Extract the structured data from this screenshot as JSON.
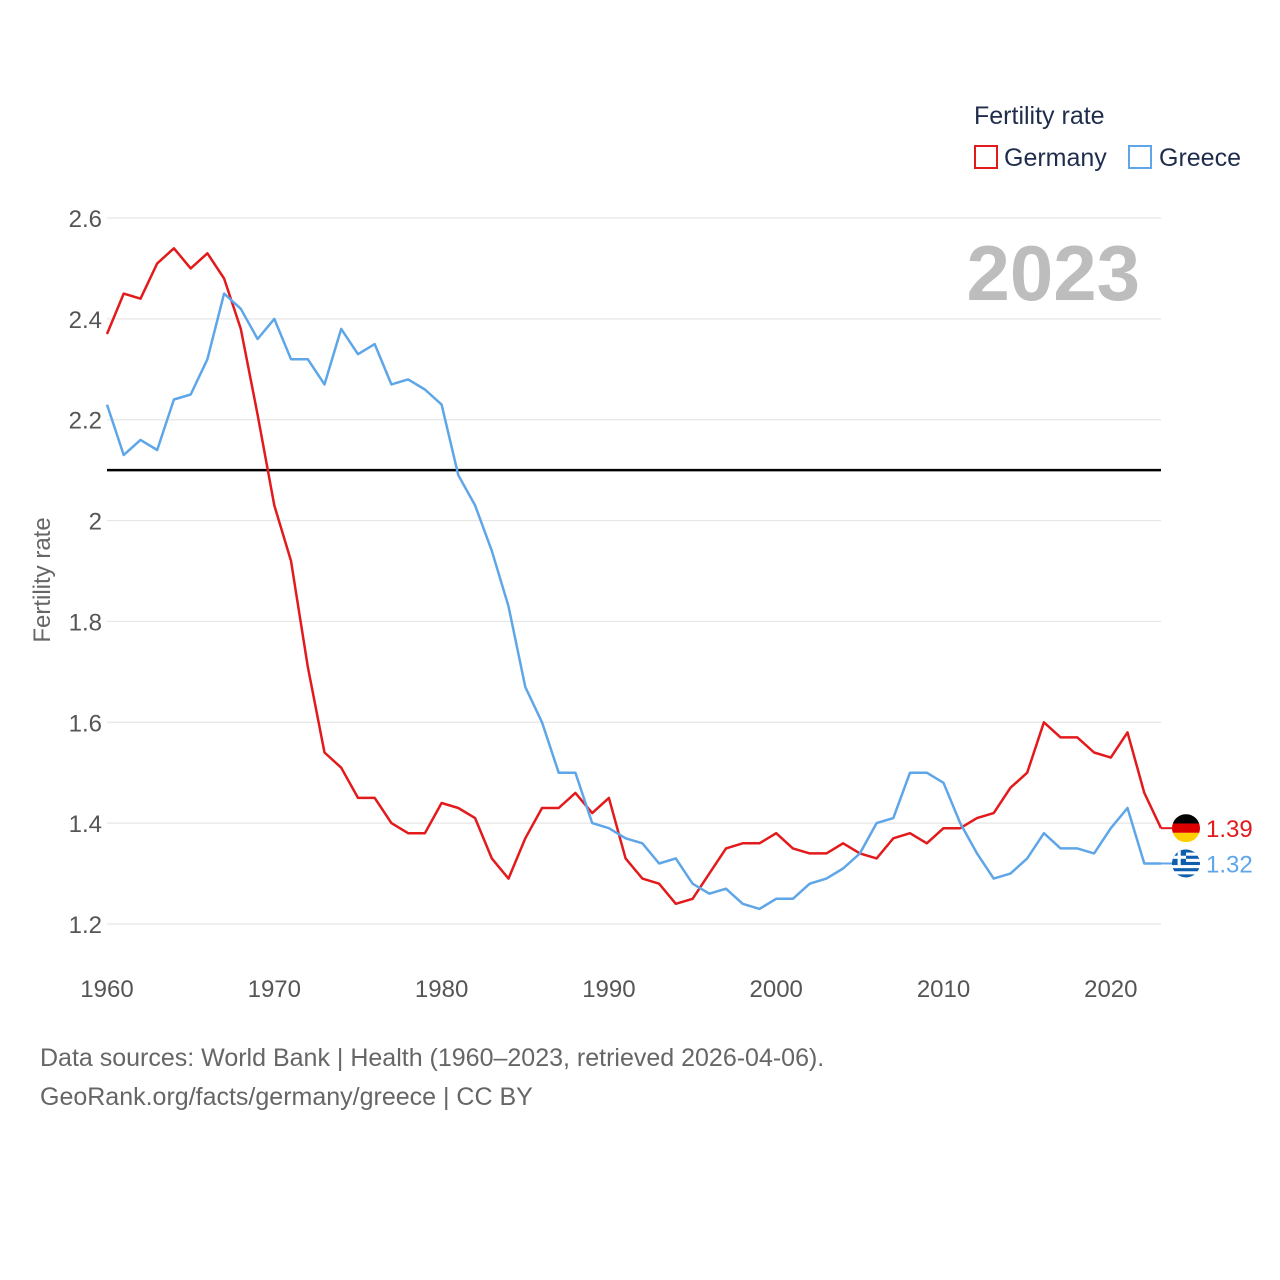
{
  "chart_data": {
    "type": "line",
    "legend_title": "Fertility rate",
    "legend_position": "top-right",
    "ylabel": "Fertility rate",
    "xlabel": "",
    "year_label": "2023",
    "xlim": [
      1960,
      2023
    ],
    "ylim": [
      1.2,
      2.6
    ],
    "x_ticks": [
      1960,
      1970,
      1980,
      1990,
      2000,
      2010,
      2020
    ],
    "y_ticks": [
      1.2,
      1.4,
      1.6,
      1.8,
      2,
      2.2,
      2.4,
      2.6
    ],
    "reference_line": 2.1,
    "grid": true,
    "x": [
      1960,
      1961,
      1962,
      1963,
      1964,
      1965,
      1966,
      1967,
      1968,
      1969,
      1970,
      1971,
      1972,
      1973,
      1974,
      1975,
      1976,
      1977,
      1978,
      1979,
      1980,
      1981,
      1982,
      1983,
      1984,
      1985,
      1986,
      1987,
      1988,
      1989,
      1990,
      1991,
      1992,
      1993,
      1994,
      1995,
      1996,
      1997,
      1998,
      1999,
      2000,
      2001,
      2002,
      2003,
      2004,
      2005,
      2006,
      2007,
      2008,
      2009,
      2010,
      2011,
      2012,
      2013,
      2014,
      2015,
      2016,
      2017,
      2018,
      2019,
      2020,
      2021,
      2022,
      2023
    ],
    "series": [
      {
        "name": "Germany",
        "color": "#e31a1c",
        "end_label": "1.39",
        "values": [
          2.37,
          2.45,
          2.44,
          2.51,
          2.54,
          2.5,
          2.53,
          2.48,
          2.38,
          2.21,
          2.03,
          1.92,
          1.71,
          1.54,
          1.51,
          1.45,
          1.45,
          1.4,
          1.38,
          1.38,
          1.44,
          1.43,
          1.41,
          1.33,
          1.29,
          1.37,
          1.43,
          1.43,
          1.46,
          1.42,
          1.45,
          1.33,
          1.29,
          1.28,
          1.24,
          1.25,
          1.3,
          1.35,
          1.36,
          1.36,
          1.38,
          1.35,
          1.34,
          1.34,
          1.36,
          1.34,
          1.33,
          1.37,
          1.38,
          1.36,
          1.39,
          1.39,
          1.41,
          1.42,
          1.47,
          1.5,
          1.6,
          1.57,
          1.57,
          1.54,
          1.53,
          1.58,
          1.46,
          1.39
        ]
      },
      {
        "name": "Greece",
        "color": "#5ea6e8",
        "end_label": "1.32",
        "values": [
          2.23,
          2.13,
          2.16,
          2.14,
          2.24,
          2.25,
          2.32,
          2.45,
          2.42,
          2.36,
          2.4,
          2.32,
          2.32,
          2.27,
          2.38,
          2.33,
          2.35,
          2.27,
          2.28,
          2.26,
          2.23,
          2.09,
          2.03,
          1.94,
          1.83,
          1.67,
          1.6,
          1.5,
          1.5,
          1.4,
          1.39,
          1.37,
          1.36,
          1.32,
          1.33,
          1.28,
          1.26,
          1.27,
          1.24,
          1.23,
          1.25,
          1.25,
          1.28,
          1.29,
          1.31,
          1.34,
          1.4,
          1.41,
          1.5,
          1.5,
          1.48,
          1.4,
          1.34,
          1.29,
          1.3,
          1.33,
          1.38,
          1.35,
          1.35,
          1.34,
          1.39,
          1.43,
          1.32,
          1.32
        ]
      }
    ]
  },
  "footer": {
    "line1": "Data sources: World Bank | Health (1960–2023, retrieved 2026-04-06).",
    "line2": "GeoRank.org/facts/germany/greece | CC BY"
  }
}
